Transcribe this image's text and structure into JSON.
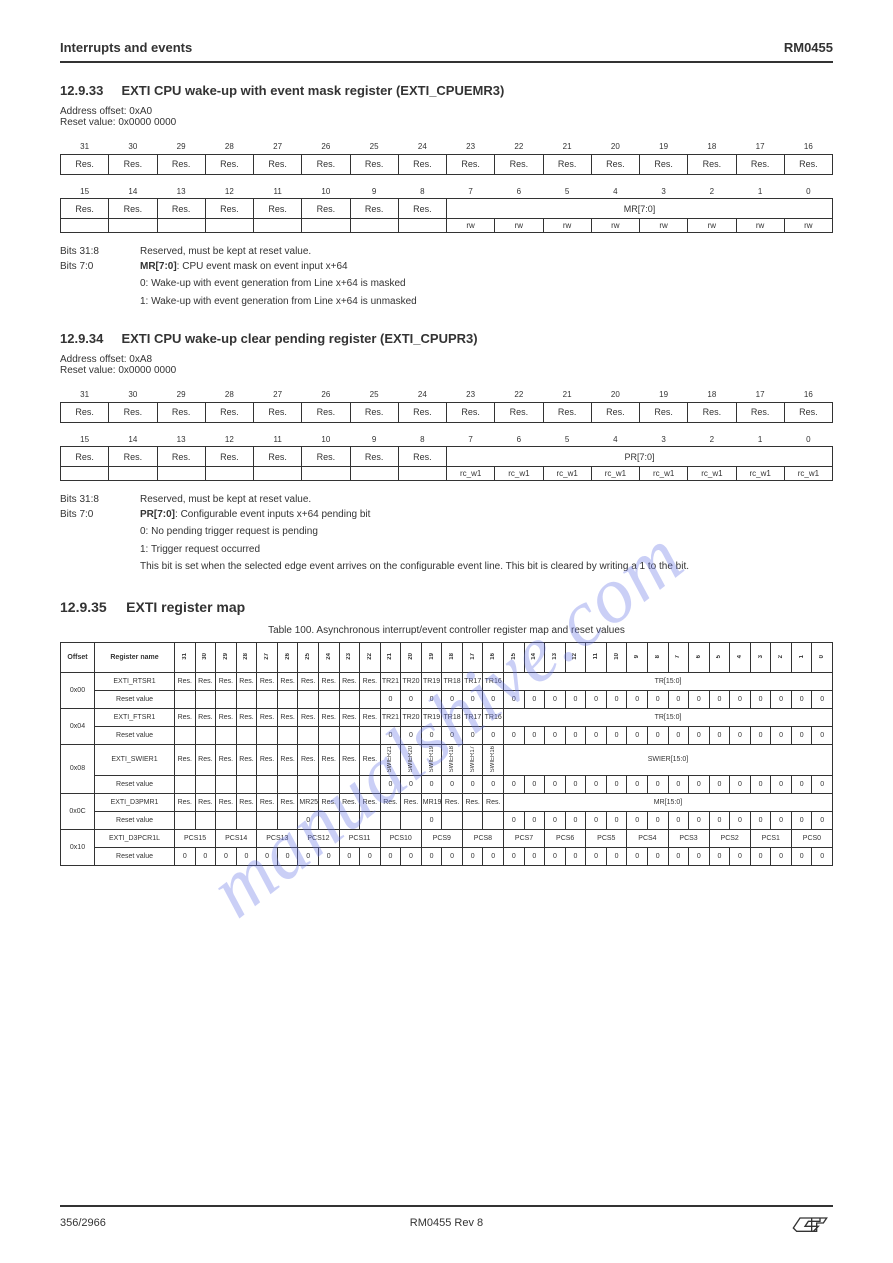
{
  "header": {
    "left": "Interrupts and events",
    "right": "RM0455"
  },
  "watermark_text": "manualshive.com",
  "reg1": {
    "title_prefix": "12.9.33",
    "title": "EXTI CPU wake-up with event mask register (EXTI_CPUEMR3)",
    "addr": "Address offset: 0xA0",
    "reset": "Reset value: 0x0000 0000",
    "bits_high_nums": [
      "31",
      "30",
      "29",
      "28",
      "27",
      "26",
      "25",
      "24",
      "23",
      "22",
      "21",
      "20",
      "19",
      "18",
      "17",
      "16"
    ],
    "bits_high_names": [
      "Res.",
      "Res.",
      "Res.",
      "Res.",
      "Res.",
      "Res.",
      "Res.",
      "Res.",
      "Res.",
      "Res.",
      "Res.",
      "Res.",
      "Res.",
      "Res.",
      "Res.",
      "Res."
    ],
    "bits_low_nums": [
      "15",
      "14",
      "13",
      "12",
      "11",
      "10",
      "9",
      "8",
      "7",
      "6",
      "5",
      "4",
      "3",
      "2",
      "1",
      "0"
    ],
    "bits_low_names": [
      "Res.",
      "Res.",
      "Res.",
      "Res.",
      "Res.",
      "Res.",
      "Res.",
      "Res.",
      "MR[7:0]"
    ],
    "bits_low_access": [
      "",
      "",
      "",
      "",
      "",
      "",
      "",
      "",
      "rw",
      "rw",
      "rw",
      "rw",
      "rw",
      "rw",
      "rw",
      "rw"
    ],
    "desc_bits_31_8": "Reserved, must be kept at reset value.",
    "desc_bits_7_0_label": "MR[7:0]",
    "desc_bits_7_0_line1": ": CPU event mask on event input x+64",
    "desc_bits_7_0_0": "0: Wake-up with event generation from Line x+64 is masked",
    "desc_bits_7_0_1": "1: Wake-up with event generation from Line x+64 is unmasked"
  },
  "reg2": {
    "title_prefix": "12.9.34",
    "title": "EXTI CPU wake-up clear pending register (EXTI_CPUPR3)",
    "addr": "Address offset: 0xA8",
    "reset": "Reset value: 0x0000 0000",
    "bits_high_nums": [
      "31",
      "30",
      "29",
      "28",
      "27",
      "26",
      "25",
      "24",
      "23",
      "22",
      "21",
      "20",
      "19",
      "18",
      "17",
      "16"
    ],
    "bits_high_names": [
      "Res.",
      "Res.",
      "Res.",
      "Res.",
      "Res.",
      "Res.",
      "Res.",
      "Res.",
      "Res.",
      "Res.",
      "Res.",
      "Res.",
      "Res.",
      "Res.",
      "Res.",
      "Res."
    ],
    "bits_low_nums": [
      "15",
      "14",
      "13",
      "12",
      "11",
      "10",
      "9",
      "8",
      "7",
      "6",
      "5",
      "4",
      "3",
      "2",
      "1",
      "0"
    ],
    "bits_low_names": [
      "Res.",
      "Res.",
      "Res.",
      "Res.",
      "Res.",
      "Res.",
      "Res.",
      "Res.",
      "PR[7:0]"
    ],
    "bits_low_access": [
      "",
      "",
      "",
      "",
      "",
      "",
      "",
      "",
      "rc_w1",
      "rc_w1",
      "rc_w1",
      "rc_w1",
      "rc_w1",
      "rc_w1",
      "rc_w1",
      "rc_w1"
    ],
    "desc_bits_31_8": "Reserved, must be kept at reset value.",
    "desc_bits_7_0_label": "PR[7:0]",
    "desc_bits_7_0_line1": ": Configurable event inputs x+64 pending bit",
    "desc_bits_7_0_0": "0: No pending trigger request is pending",
    "desc_bits_7_0_1": "1: Trigger request occurred",
    "desc_bits_7_0_note": "This bit is set when the selected edge event arrives on the configurable event line. This bit is cleared by writing a 1 to the bit."
  },
  "section": {
    "prefix": "12.9.35",
    "title": "EXTI register map",
    "caption": "Table 100. Asynchronous interrupt/event controller register map and reset values"
  },
  "map": {
    "cols": [
      "Offset",
      "Register name",
      "31",
      "30",
      "29",
      "28",
      "27",
      "26",
      "25",
      "24",
      "23",
      "22",
      "21",
      "20",
      "19",
      "18",
      "17",
      "16",
      "15",
      "14",
      "13",
      "12",
      "11",
      "10",
      "9",
      "8",
      "7",
      "6",
      "5",
      "4",
      "3",
      "2",
      "1",
      "0"
    ],
    "rows": [
      {
        "offset": "0x00",
        "name": "EXTI_RTSR1",
        "cells": [
          "Res.",
          "Res.",
          "Res.",
          "Res.",
          "Res.",
          "Res.",
          "Res.",
          "Res.",
          "Res.",
          "Res.",
          "TR21",
          "TR20",
          "TR19",
          "TR18",
          "TR17",
          "TR16",
          "TR[15:0]"
        ],
        "cell_spans": [
          1,
          1,
          1,
          1,
          1,
          1,
          1,
          1,
          1,
          1,
          1,
          1,
          1,
          1,
          1,
          1,
          16
        ]
      },
      {
        "offset": "",
        "name": "Reset value",
        "cells": [
          "",
          "",
          "",
          "",
          "",
          "",
          "",
          "",
          "",
          "",
          "0",
          "0",
          "0",
          "0",
          "0",
          "0",
          "0",
          "0",
          "0",
          "0",
          "0",
          "0",
          "0",
          "0",
          "0",
          "0",
          "0",
          "0",
          "0",
          "0",
          "0",
          "0"
        ],
        "cell_spans": null
      },
      {
        "offset": "0x04",
        "name": "EXTI_FTSR1",
        "cells": [
          "Res.",
          "Res.",
          "Res.",
          "Res.",
          "Res.",
          "Res.",
          "Res.",
          "Res.",
          "Res.",
          "Res.",
          "TR21",
          "TR20",
          "TR19",
          "TR18",
          "TR17",
          "TR16",
          "TR[15:0]"
        ],
        "cell_spans": [
          1,
          1,
          1,
          1,
          1,
          1,
          1,
          1,
          1,
          1,
          1,
          1,
          1,
          1,
          1,
          1,
          16
        ]
      },
      {
        "offset": "",
        "name": "Reset value",
        "cells": [
          "",
          "",
          "",
          "",
          "",
          "",
          "",
          "",
          "",
          "",
          "0",
          "0",
          "0",
          "0",
          "0",
          "0",
          "0",
          "0",
          "0",
          "0",
          "0",
          "0",
          "0",
          "0",
          "0",
          "0",
          "0",
          "0",
          "0",
          "0",
          "0",
          "0"
        ],
        "cell_spans": null
      },
      {
        "offset": "0x08",
        "name": "EXTI_SWIER1",
        "cells": [
          "Res.",
          "Res.",
          "Res.",
          "Res.",
          "Res.",
          "Res.",
          "Res.",
          "Res.",
          "Res.",
          "Res.",
          "SWIER21",
          "SWIER20",
          "SWIER19",
          "SWIER18",
          "SWIER17",
          "SWIER16",
          "SWIER[15:0]"
        ],
        "cell_spans": [
          1,
          1,
          1,
          1,
          1,
          1,
          1,
          1,
          1,
          1,
          1,
          1,
          1,
          1,
          1,
          1,
          16
        ]
      },
      {
        "offset": "",
        "name": "Reset value",
        "cells": [
          "",
          "",
          "",
          "",
          "",
          "",
          "",
          "",
          "",
          "",
          "0",
          "0",
          "0",
          "0",
          "0",
          "0",
          "0",
          "0",
          "0",
          "0",
          "0",
          "0",
          "0",
          "0",
          "0",
          "0",
          "0",
          "0",
          "0",
          "0",
          "0",
          "0"
        ],
        "cell_spans": null
      },
      {
        "offset": "0x0C",
        "name": "EXTI_D3PMR1",
        "cells": [
          "Res.",
          "Res.",
          "Res.",
          "Res.",
          "Res.",
          "Res.",
          "MR25",
          "Res.",
          "Res.",
          "Res.",
          "Res.",
          "Res.",
          "MR19",
          "Res.",
          "Res.",
          "Res.",
          "MR[15:0]"
        ],
        "cell_spans": [
          1,
          1,
          1,
          1,
          1,
          1,
          1,
          1,
          1,
          1,
          1,
          1,
          1,
          1,
          1,
          1,
          16
        ]
      },
      {
        "offset": "",
        "name": "Reset value",
        "cells": [
          "",
          "",
          "",
          "",
          "",
          "",
          "0",
          "",
          "",
          "",
          "",
          "",
          "0",
          "",
          "",
          "",
          "0",
          "0",
          "0",
          "0",
          "0",
          "0",
          "0",
          "0",
          "0",
          "0",
          "0",
          "0",
          "0",
          "0",
          "0",
          "0"
        ],
        "cell_spans": null
      },
      {
        "offset": "0x10",
        "name": "EXTI_D3PCR1L",
        "cells": [
          "PCS15",
          "PCS14",
          "PCS13",
          "PCS12",
          "PCS11",
          "PCS10",
          "PCS9",
          "PCS8",
          "PCS7",
          "PCS6",
          "PCS5",
          "PCS4",
          "PCS3",
          "PCS2",
          "PCS1",
          "PCS0"
        ],
        "cell_spans": [
          2,
          2,
          2,
          2,
          2,
          2,
          2,
          2,
          2,
          2,
          2,
          2,
          2,
          2,
          2,
          2
        ]
      },
      {
        "offset": "",
        "name": "Reset value",
        "cells": [
          "0",
          "0",
          "0",
          "0",
          "0",
          "0",
          "0",
          "0",
          "0",
          "0",
          "0",
          "0",
          "0",
          "0",
          "0",
          "0",
          "0",
          "0",
          "0",
          "0",
          "0",
          "0",
          "0",
          "0",
          "0",
          "0",
          "0",
          "0",
          "0",
          "0",
          "0",
          "0"
        ],
        "cell_spans": null
      }
    ]
  },
  "footer": {
    "page": "356/2966",
    "docid": "RM0455 Rev 8"
  },
  "colors": {
    "border": "#333333",
    "watermark": "#6b78e8",
    "text": "#333333",
    "bg": "#ffffff"
  }
}
